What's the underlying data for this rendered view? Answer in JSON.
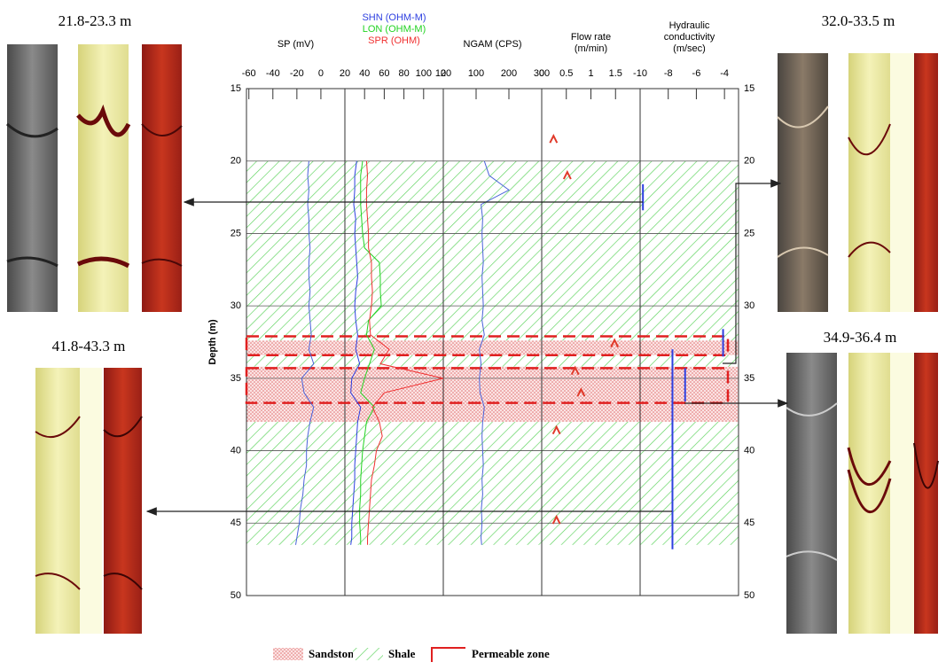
{
  "chart_data": {
    "type": "well-log",
    "ylabel": "Depth (m)",
    "ylim": [
      15,
      50
    ],
    "yticks": [
      15,
      20,
      25,
      30,
      35,
      40,
      45,
      50
    ],
    "grid": true,
    "tracks": [
      {
        "title": [
          "SP (mV)"
        ],
        "xlim": [
          -62,
          20
        ],
        "xticks": [
          -60,
          -40,
          -20,
          0
        ],
        "depth": [
          20,
          21,
          22,
          23,
          24,
          25,
          26,
          27,
          28,
          29,
          30,
          31,
          32,
          33,
          34,
          35,
          36,
          37,
          38,
          39,
          40,
          41,
          42,
          43,
          44,
          45,
          46,
          46.5
        ],
        "series": [
          {
            "name": "SP (mV)",
            "color": "#4a63d9",
            "values": [
              -10,
              -11,
              -10,
              -11,
              -10,
              -10,
              -9,
              -10,
              -10,
              -9,
              -10,
              -9,
              -8,
              -10,
              -6,
              -16,
              -14,
              -6,
              -9,
              -11,
              -12,
              -12,
              -14,
              -15,
              -17,
              -18,
              -20,
              -21
            ]
          }
        ]
      },
      {
        "title": [],
        "xlim": [
          20,
          120
        ],
        "xticks": [
          20,
          40,
          60,
          80,
          100,
          120
        ],
        "depth": [
          20,
          21,
          22,
          23,
          24,
          25,
          26,
          27,
          28,
          29,
          30,
          31,
          32,
          33,
          34,
          35,
          36,
          37,
          38,
          39,
          40,
          41,
          42,
          43,
          44,
          45,
          46,
          46.5
        ],
        "series": [
          {
            "name": "SHN (OHM-M)",
            "color": "#2d3fe0",
            "values": [
              32,
              30,
              30,
              29,
              31,
              30,
              31,
              32,
              33,
              31,
              30,
              31,
              33,
              31,
              35,
              27,
              26,
              36,
              33,
              32,
              31,
              30,
              30,
              29,
              28,
              27,
              27,
              26
            ]
          },
          {
            "name": "LON (OHM-M)",
            "color": "#22d322",
            "values": [
              38,
              36,
              36,
              36,
              37,
              38,
              40,
              55,
              56,
              56,
              57,
              44,
              42,
              50,
              45,
              40,
              36,
              50,
              42,
              40,
              38,
              37,
              36,
              36,
              35,
              35,
              36,
              36
            ]
          },
          {
            "name": "SPR (OHM)",
            "color": "#f03030",
            "values": [
              42,
              43,
              42,
              42,
              43,
              44,
              44,
              47,
              47,
              48,
              47,
              45,
              46,
              65,
              56,
              120,
              60,
              48,
              55,
              58,
              52,
              50,
              47,
              46,
              45,
              44,
              43,
              43
            ]
          }
        ]
      },
      {
        "title": [
          "NGAM (CPS)"
        ],
        "xlim": [
          0,
          300
        ],
        "xticks": [
          0,
          100,
          200,
          300
        ],
        "depth": [
          20,
          21,
          22,
          23,
          24,
          25,
          26,
          27,
          28,
          29,
          30,
          31,
          32,
          33,
          34,
          35,
          36,
          37,
          38,
          39,
          40,
          41,
          42,
          43,
          44,
          45,
          46,
          46.5
        ],
        "series": [
          {
            "name": "NGAM (CPS)",
            "color": "#4a63d9",
            "values": [
              125,
              140,
              200,
              115,
              120,
              118,
              120,
              122,
              118,
              120,
              122,
              118,
              125,
              110,
              115,
              110,
              112,
              125,
              120,
              118,
              120,
              122,
              118,
              120,
              116,
              118,
              115,
              117
            ]
          }
        ]
      },
      {
        "title": [
          "Flow rate",
          "(m/min)"
        ],
        "xlim": [
          0,
          2
        ],
        "xticks": [
          0,
          0.5,
          1,
          1.5
        ],
        "points": {
          "color": "#e03a2a",
          "depth": [
            18.5,
            21,
            32.6,
            34.5,
            36,
            38.6,
            44.8
          ],
          "values": [
            0.24,
            0.52,
            1.48,
            0.68,
            0.8,
            0.3,
            0.3
          ]
        }
      },
      {
        "title": [
          "Hydraulic",
          "conductivity",
          "(m/sec)"
        ],
        "xlim": [
          -10,
          -3
        ],
        "xticks": [
          -10,
          -8,
          -6,
          -4
        ],
        "segments": {
          "color": "#2d3fe0",
          "items": [
            {
              "value": -9.8,
              "top": 21.6,
              "bottom": 23.4
            },
            {
              "value": -4.1,
              "top": 31.6,
              "bottom": 33.5
            },
            {
              "value": -6.8,
              "top": 34.3,
              "bottom": 36.6
            },
            {
              "value": -7.7,
              "top": 33,
              "bottom": 46.8
            }
          ]
        }
      }
    ],
    "lithology": [
      {
        "name": "Shale",
        "color": "#5ad35a",
        "intervals": [
          [
            20,
            32.4
          ],
          [
            33.4,
            34.2
          ],
          [
            38,
            46.5
          ]
        ]
      },
      {
        "name": "Sandstone",
        "color": "#e05a5a",
        "intervals": [
          [
            32.4,
            33.4
          ],
          [
            34.2,
            38
          ]
        ]
      }
    ],
    "permeable_zone": {
      "name": "Permeable zone",
      "color": "#e02020",
      "intervals": [
        [
          32.1,
          33.4
        ],
        [
          34.3,
          36.7
        ]
      ]
    }
  },
  "core_images": [
    "21.8-23.3 m",
    "41.8-43.3 m",
    "32.0-33.5 m",
    "34.9-36.4 m"
  ]
}
